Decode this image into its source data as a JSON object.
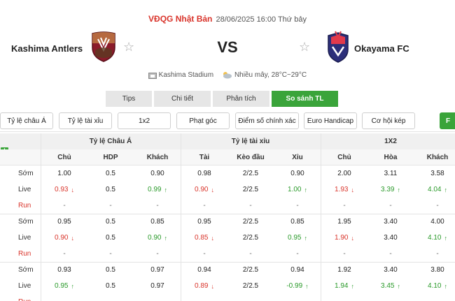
{
  "header": {
    "league": "VĐQG Nhật Bản",
    "datetime": "28/06/2025 16:00 Thứ bảy",
    "home_team": "Kashima Antlers",
    "away_team": "Okayama FC",
    "vs": "VS",
    "stadium": "Kashima Stadium",
    "weather": "Nhiều mây, 28°C~29°C"
  },
  "tabs": [
    {
      "label": "Tips"
    },
    {
      "label": "Chi tiết"
    },
    {
      "label": "Phân tích"
    },
    {
      "label": "So sánh TL"
    }
  ],
  "filters": [
    {
      "label": "Tỷ lệ châu Á"
    },
    {
      "label": "Tỷ lệ tài xỉu"
    },
    {
      "label": "1x2"
    },
    {
      "label": "Phạt góc"
    },
    {
      "label": "Điểm số chính xác"
    },
    {
      "label": "Euro Handicap"
    },
    {
      "label": "Cơ hội kép"
    },
    {
      "label": "F"
    }
  ],
  "table": {
    "groups": [
      "Tỷ lệ Châu Á",
      "Tỷ lệ tài xỉu",
      "1X2"
    ],
    "columns": [
      "Chủ",
      "HDP",
      "Khách",
      "Tài",
      "Kèo đầu",
      "Xỉu",
      "Chủ",
      "Hòa",
      "Khách"
    ],
    "row_labels": [
      "Sớm",
      "Live",
      "Run"
    ],
    "blocks": [
      {
        "early": [
          "1.00",
          "0.5",
          "0.90",
          "0.98",
          "2/2.5",
          "0.90",
          "2.00",
          "3.11",
          "3.58"
        ],
        "live": [
          "0.93",
          "0.5",
          "0.99",
          "0.90",
          "2/2.5",
          "1.00",
          "1.93",
          "3.39",
          "4.04"
        ],
        "live_dir": [
          "down",
          "",
          "up",
          "down",
          "",
          "up",
          "down",
          "up",
          "up"
        ],
        "run": [
          "-",
          "-",
          "-",
          "-",
          "-",
          "-",
          "-",
          "-",
          "-"
        ]
      },
      {
        "early": [
          "0.95",
          "0.5",
          "0.85",
          "0.95",
          "2/2.5",
          "0.85",
          "1.95",
          "3.40",
          "4.00"
        ],
        "live": [
          "0.90",
          "0.5",
          "0.90",
          "0.85",
          "2/2.5",
          "0.95",
          "1.90",
          "3.40",
          "4.10"
        ],
        "live_dir": [
          "down",
          "",
          "up",
          "down",
          "",
          "up",
          "down",
          "",
          "up"
        ],
        "run": [
          "-",
          "-",
          "-",
          "-",
          "-",
          "-",
          "-",
          "-",
          "-"
        ]
      },
      {
        "early": [
          "0.93",
          "0.5",
          "0.97",
          "0.94",
          "2/2.5",
          "0.94",
          "1.92",
          "3.40",
          "3.80"
        ],
        "live": [
          "0.95",
          "0.5",
          "0.97",
          "0.89",
          "2/2.5",
          "-0.99",
          "1.94",
          "3.45",
          "4.10"
        ],
        "live_dir": [
          "up",
          "",
          "",
          "down",
          "",
          "up",
          "up",
          "up",
          "up"
        ],
        "run": []
      }
    ]
  },
  "colors": {
    "accent": "#3aa43a",
    "league": "#d9342b",
    "up": "#2a9a2a",
    "down": "#d9342b"
  }
}
